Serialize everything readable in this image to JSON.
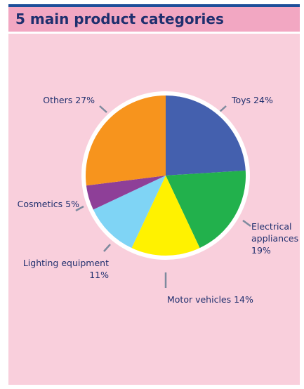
{
  "title": "5 main product categories",
  "colors": {
    "panel_bg": "#f9cfdc",
    "title_bg": "#f2a7c2",
    "title_text": "#1f2f6e",
    "top_border": "#1d4f9a"
  },
  "chart_data": {
    "type": "pie",
    "title": "5 main product categories",
    "slices": [
      {
        "label": "Toys",
        "value": 24,
        "display": [
          "Toys 24%"
        ],
        "color": "#4460ae"
      },
      {
        "label": "Electrical appliances",
        "value": 19,
        "display": [
          "Electrical",
          "appliances",
          "19%"
        ],
        "color": "#22b14c"
      },
      {
        "label": "Motor vehicles",
        "value": 14,
        "display": [
          "Motor vehicles 14%"
        ],
        "color": "#fff200"
      },
      {
        "label": "Lighting equipment",
        "value": 11,
        "display": [
          "Lighting equipment",
          "11%"
        ],
        "color": "#7fd4f5"
      },
      {
        "label": "Cosmetics",
        "value": 5,
        "display": [
          "Cosmetics 5%"
        ],
        "color": "#8e3f98"
      },
      {
        "label": "Others",
        "value": 27,
        "display": [
          "Others 27%"
        ],
        "color": "#f7941d"
      }
    ],
    "start_angle": "12 o'clock",
    "direction": "clockwise"
  }
}
